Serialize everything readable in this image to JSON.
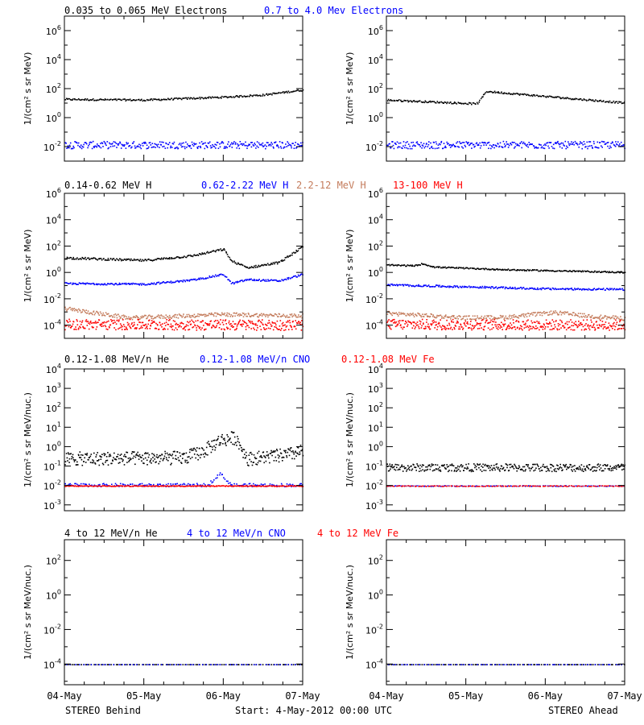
{
  "footer": {
    "left": "STEREO Behind",
    "center": "Start:  4-May-2012 00:00 UTC",
    "right": "STEREO Ahead"
  },
  "x_ticks": [
    "04-May",
    "05-May",
    "06-May",
    "07-May"
  ],
  "colors": {
    "black": "#000000",
    "blue": "#0000ff",
    "tan": "#c47c5c",
    "red": "#ff0000",
    "axis": "#000000"
  },
  "rows": [
    {
      "legend": [
        {
          "text": "0.035 to 0.065 MeV Electrons",
          "color": "#000000"
        },
        {
          "text": "0.7 to 4.0 Mev Electrons",
          "color": "#0000ff"
        }
      ],
      "ylabel": "1/(cm² s sr MeV)",
      "y_ticks": [
        {
          "mant": "10",
          "exp": "6",
          "v": 6
        },
        {
          "mant": "10",
          "exp": "4",
          "v": 4
        },
        {
          "mant": "10",
          "exp": "2",
          "v": 2
        },
        {
          "mant": "10",
          "exp": "0",
          "v": 0
        },
        {
          "mant": "10",
          "exp": "-2",
          "v": -2
        }
      ]
    },
    {
      "legend": [
        {
          "text": "0.14-0.62 MeV H",
          "color": "#000000"
        },
        {
          "text": "0.62-2.22 MeV H",
          "color": "#0000ff"
        },
        {
          "text": "2.2-12 MeV H",
          "color": "#c47c5c"
        },
        {
          "text": "13-100 MeV H",
          "color": "#ff0000"
        }
      ],
      "ylabel": "1/(cm² s sr MeV)",
      "y_ticks": [
        {
          "mant": "10",
          "exp": "6",
          "v": 6
        },
        {
          "mant": "10",
          "exp": "4",
          "v": 4
        },
        {
          "mant": "10",
          "exp": "2",
          "v": 2
        },
        {
          "mant": "10",
          "exp": "0",
          "v": 0
        },
        {
          "mant": "10",
          "exp": "-2",
          "v": -2
        },
        {
          "mant": "10",
          "exp": "-4",
          "v": -4
        }
      ]
    },
    {
      "legend": [
        {
          "text": "0.12-1.08 MeV/n He",
          "color": "#000000"
        },
        {
          "text": "0.12-1.08 MeV/n CNO",
          "color": "#0000ff"
        },
        {
          "text": "0.12-1.08 MeV Fe",
          "color": "#ff0000"
        }
      ],
      "ylabel": "1/(cm² s sr MeV/nuc.)",
      "y_ticks": [
        {
          "mant": "10",
          "exp": "4",
          "v": 4
        },
        {
          "mant": "10",
          "exp": "3",
          "v": 3
        },
        {
          "mant": "10",
          "exp": "2",
          "v": 2
        },
        {
          "mant": "10",
          "exp": "1",
          "v": 1
        },
        {
          "mant": "10",
          "exp": "0",
          "v": 0
        },
        {
          "mant": "10",
          "exp": "-1",
          "v": -1
        },
        {
          "mant": "10",
          "exp": "-2",
          "v": -2
        },
        {
          "mant": "10",
          "exp": "-3",
          "v": -3
        }
      ]
    },
    {
      "legend": [
        {
          "text": "4 to 12 MeV/n He",
          "color": "#000000"
        },
        {
          "text": "4 to 12 MeV/n CNO",
          "color": "#0000ff"
        },
        {
          "text": "4 to 12 MeV Fe",
          "color": "#ff0000"
        }
      ],
      "ylabel": "1/(cm² s sr MeV/nuc.)",
      "y_ticks": [
        {
          "mant": "10",
          "exp": "2",
          "v": 2
        },
        {
          "mant": "10",
          "exp": "0",
          "v": 0
        },
        {
          "mant": "10",
          "exp": "-2",
          "v": -2
        },
        {
          "mant": "10",
          "exp": "-4",
          "v": -4
        }
      ]
    }
  ],
  "chart_data": [
    {
      "type": "scatter",
      "panel": "behind-electrons",
      "yscale": "log",
      "xlim": [
        0,
        3
      ],
      "ylim": [
        -3,
        7
      ],
      "series": [
        {
          "name": "0.035 to 0.065 MeV Electrons",
          "color": "#000000",
          "profile": [
            [
              0,
              1.3
            ],
            [
              1,
              1.25
            ],
            [
              2,
              1.45
            ],
            [
              2.5,
              1.6
            ],
            [
              3,
              1.95
            ]
          ],
          "spread": 0.06,
          "n": 240
        },
        {
          "name": "0.7 to 4.0 Mev Electrons",
          "color": "#0000ff",
          "profile": [
            [
              0,
              -1.85
            ],
            [
              3,
              -1.85
            ]
          ],
          "spread": 0.25,
          "n": 320
        }
      ]
    },
    {
      "type": "scatter",
      "panel": "ahead-electrons",
      "yscale": "log",
      "xlim": [
        0,
        3
      ],
      "ylim": [
        -3,
        7
      ],
      "series": [
        {
          "name": "0.035 to 0.065 MeV Electrons",
          "color": "#000000",
          "profile": [
            [
              0,
              1.25
            ],
            [
              1.1,
              1.0
            ],
            [
              1.15,
              1.05
            ],
            [
              1.25,
              1.85
            ],
            [
              2,
              1.5
            ],
            [
              3,
              1.05
            ]
          ],
          "spread": 0.06,
          "n": 240
        },
        {
          "name": "0.7 to 4.0 Mev Electrons",
          "color": "#0000ff",
          "profile": [
            [
              0,
              -1.85
            ],
            [
              3,
              -1.85
            ]
          ],
          "spread": 0.25,
          "n": 320
        }
      ]
    },
    {
      "type": "scatter",
      "panel": "behind-protons",
      "yscale": "log",
      "xlim": [
        0,
        3
      ],
      "ylim": [
        -5,
        6
      ],
      "series": [
        {
          "name": "0.14-0.62 MeV H",
          "color": "#000000",
          "profile": [
            [
              0,
              1.15
            ],
            [
              1,
              0.95
            ],
            [
              1.6,
              1.3
            ],
            [
              2,
              1.8
            ],
            [
              2.1,
              0.9
            ],
            [
              2.3,
              0.4
            ],
            [
              2.7,
              0.8
            ],
            [
              3,
              2.0
            ]
          ],
          "spread": 0.08,
          "n": 260
        },
        {
          "name": "0.62-2.22 MeV H",
          "color": "#0000ff",
          "profile": [
            [
              0,
              -0.8
            ],
            [
              1,
              -0.85
            ],
            [
              1.6,
              -0.55
            ],
            [
              2,
              -0.1
            ],
            [
              2.1,
              -0.8
            ],
            [
              2.3,
              -0.5
            ],
            [
              2.7,
              -0.6
            ],
            [
              3,
              -0.1
            ]
          ],
          "spread": 0.07,
          "n": 260
        },
        {
          "name": "2.2-12 MeV H",
          "color": "#c47c5c",
          "profile": [
            [
              0,
              -2.7
            ],
            [
              0.8,
              -3.4
            ],
            [
              2.0,
              -3.15
            ],
            [
              3,
              -3.25
            ]
          ],
          "spread": 0.15,
          "n": 300
        },
        {
          "name": "13-100 MeV H",
          "color": "#ff0000",
          "profile": [
            [
              0,
              -3.9
            ],
            [
              3,
              -3.95
            ]
          ],
          "spread": 0.4,
          "n": 420
        }
      ]
    },
    {
      "type": "scatter",
      "panel": "ahead-protons",
      "yscale": "log",
      "xlim": [
        0,
        3
      ],
      "ylim": [
        -5,
        6
      ],
      "series": [
        {
          "name": "0.14-0.62 MeV H",
          "color": "#000000",
          "profile": [
            [
              0,
              0.6
            ],
            [
              0.35,
              0.55
            ],
            [
              0.45,
              0.7
            ],
            [
              0.6,
              0.45
            ],
            [
              1.5,
              0.25
            ],
            [
              3,
              0.05
            ]
          ],
          "spread": 0.05,
          "n": 260
        },
        {
          "name": "0.62-2.22 MeV H",
          "color": "#0000ff",
          "profile": [
            [
              0,
              -0.9
            ],
            [
              1,
              -1.05
            ],
            [
              2,
              -1.2
            ],
            [
              3,
              -1.25
            ]
          ],
          "spread": 0.07,
          "n": 260
        },
        {
          "name": "2.2-12 MeV H",
          "color": "#c47c5c",
          "profile": [
            [
              0,
              -3.05
            ],
            [
              1,
              -3.4
            ],
            [
              1.5,
              -3.35
            ],
            [
              2.1,
              -3.0
            ],
            [
              2.6,
              -3.3
            ],
            [
              3,
              -3.45
            ]
          ],
          "spread": 0.15,
          "n": 300
        },
        {
          "name": "13-100 MeV H",
          "color": "#ff0000",
          "profile": [
            [
              0,
              -3.9
            ],
            [
              3,
              -3.95
            ]
          ],
          "spread": 0.4,
          "n": 420
        }
      ]
    },
    {
      "type": "scatter",
      "panel": "behind-heavy-low",
      "yscale": "log",
      "xlim": [
        0,
        3
      ],
      "ylim": [
        -3.3,
        4
      ],
      "series": [
        {
          "name": "0.12-1.08 MeV/n He",
          "color": "#000000",
          "profile": [
            [
              0,
              -0.6
            ],
            [
              1.5,
              -0.55
            ],
            [
              1.75,
              -0.2
            ],
            [
              1.95,
              0.35
            ],
            [
              2.15,
              0.5
            ],
            [
              2.3,
              -0.6
            ],
            [
              2.8,
              -0.4
            ],
            [
              3,
              -0.2
            ]
          ],
          "spread": 0.35,
          "n": 420
        },
        {
          "name": "0.12-1.08 MeV/n CNO",
          "color": "#0000ff",
          "profile": [
            [
              0,
              -1.95
            ],
            [
              1.8,
              -1.95
            ],
            [
              1.95,
              -1.35
            ],
            [
              2.1,
              -1.95
            ],
            [
              3,
              -1.95
            ]
          ],
          "spread": 0.08,
          "n": 200
        },
        {
          "name": "0.12-1.08 MeV Fe",
          "color": "#ff0000",
          "profile": [
            [
              0,
              -2.0
            ],
            [
              3,
              -2.0
            ]
          ],
          "spread": 0.02,
          "n": 260
        }
      ]
    },
    {
      "type": "scatter",
      "panel": "ahead-heavy-low",
      "yscale": "log",
      "xlim": [
        0,
        3
      ],
      "ylim": [
        -3.3,
        4
      ],
      "series": [
        {
          "name": "0.12-1.08 MeV/n He",
          "color": "#000000",
          "profile": [
            [
              0,
              -1.05
            ],
            [
              3,
              -1.05
            ]
          ],
          "spread": 0.2,
          "n": 360
        },
        {
          "name": "0.12-1.08 MeV/n CNO",
          "color": "#0000ff",
          "profile": [
            [
              0,
              -2.0
            ],
            [
              3,
              -2.0
            ]
          ],
          "spread": 0.02,
          "n": 140
        },
        {
          "name": "0.12-1.08 MeV Fe",
          "color": "#ff0000",
          "profile": [
            [
              0,
              -2.0
            ],
            [
              3,
              -2.0
            ]
          ],
          "spread": 0.02,
          "n": 140
        }
      ]
    },
    {
      "type": "scatter",
      "panel": "behind-heavy-high",
      "yscale": "log",
      "xlim": [
        0,
        3
      ],
      "ylim": [
        -5.2,
        3.2
      ],
      "series": [
        {
          "name": "4 to 12 MeV/n He",
          "color": "#000000",
          "profile": [
            [
              0,
              -4.0
            ],
            [
              3,
              -4.0
            ]
          ],
          "spread": 0.0,
          "n": 110
        },
        {
          "name": "4 to 12 MeV/n CNO",
          "color": "#0000ff",
          "profile": [
            [
              0,
              -4.0
            ],
            [
              3,
              -4.0
            ]
          ],
          "spread": 0.0,
          "n": 60
        }
      ]
    },
    {
      "type": "scatter",
      "panel": "ahead-heavy-high",
      "yscale": "log",
      "xlim": [
        0,
        3
      ],
      "ylim": [
        -5.2,
        3.2
      ],
      "series": [
        {
          "name": "4 to 12 MeV/n He",
          "color": "#000000",
          "profile": [
            [
              0,
              -4.0
            ],
            [
              3,
              -4.0
            ]
          ],
          "spread": 0.0,
          "n": 110
        },
        {
          "name": "4 to 12 MeV/n CNO",
          "color": "#0000ff",
          "profile": [
            [
              0,
              -4.0
            ],
            [
              3,
              -4.0
            ]
          ],
          "spread": 0.0,
          "n": 60
        }
      ]
    }
  ]
}
